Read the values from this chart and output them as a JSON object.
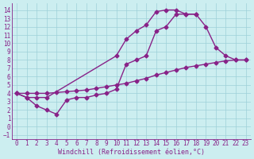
{
  "title": "",
  "xlabel": "Windchill (Refroidissement éolien,°C)",
  "ylabel": "",
  "bg_color": "#cceef0",
  "grid_color": "#9ed0d8",
  "line_color": "#882288",
  "xlim": [
    -0.5,
    23.5
  ],
  "ylim": [
    -1.5,
    14.8
  ],
  "xticks": [
    0,
    1,
    2,
    3,
    4,
    5,
    6,
    7,
    8,
    9,
    10,
    11,
    12,
    13,
    14,
    15,
    16,
    17,
    18,
    19,
    20,
    21,
    22,
    23
  ],
  "yticks": [
    -1,
    0,
    1,
    2,
    3,
    4,
    5,
    6,
    7,
    8,
    9,
    10,
    11,
    12,
    13,
    14
  ],
  "curve1_x": [
    0,
    1,
    2,
    3,
    10,
    11,
    12,
    13,
    14,
    15,
    16,
    17,
    18
  ],
  "curve1_y": [
    4.0,
    3.5,
    3.5,
    3.5,
    8.5,
    10.5,
    11.5,
    12.2,
    13.8,
    14.0,
    14.0,
    13.5,
    13.5
  ],
  "curve2_x": [
    0,
    1,
    2,
    3,
    4,
    5,
    6,
    7,
    8,
    9,
    10,
    11,
    12,
    13,
    14,
    15,
    16,
    17,
    18,
    19,
    20,
    21,
    22,
    23
  ],
  "curve2_y": [
    4.0,
    3.5,
    2.5,
    2.0,
    1.5,
    3.2,
    3.5,
    3.5,
    3.8,
    4.0,
    4.5,
    7.5,
    8.0,
    8.5,
    11.5,
    12.0,
    13.5,
    13.5,
    13.5,
    12.0,
    9.5,
    8.5,
    8.0,
    8.0
  ],
  "curve3_x": [
    0,
    1,
    2,
    3,
    4,
    5,
    6,
    7,
    8,
    9,
    10,
    11,
    12,
    13,
    14,
    15,
    16,
    17,
    18,
    19,
    20,
    21,
    22,
    23
  ],
  "curve3_y": [
    4.0,
    4.0,
    4.0,
    4.0,
    4.1,
    4.2,
    4.3,
    4.4,
    4.6,
    4.8,
    5.0,
    5.2,
    5.5,
    5.8,
    6.2,
    6.5,
    6.8,
    7.1,
    7.3,
    7.5,
    7.7,
    7.9,
    8.0,
    8.0
  ],
  "marker": "D",
  "marker_size": 2.5,
  "line_width": 1.0,
  "font_size": 6,
  "tick_font_size": 5.5
}
